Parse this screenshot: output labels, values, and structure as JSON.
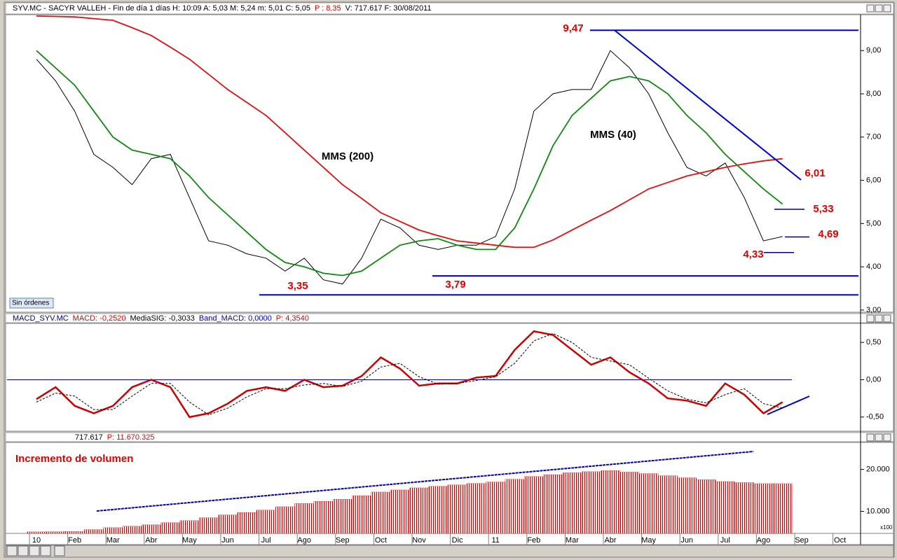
{
  "chart_data": [
    {
      "type": "line",
      "header": [
        {
          "text": "SYV.MC - SACYR VALLEH - Fin de día 1 días H: 10:09 A: 5,03 M: 5,24 m: 5,01 C: 5,05",
          "color": "#000000"
        },
        {
          "text": "P : 8,35",
          "color": "#e00000"
        },
        {
          "text": "V: 717.617 F: 30/08/2011",
          "color": "#000000"
        }
      ],
      "button": "Sin órdenes",
      "ylim": [
        2.95,
        9.83
      ],
      "yticks": [
        {
          "value": 3,
          "label": "3,00"
        },
        {
          "value": 4,
          "label": "4,00"
        },
        {
          "value": 5,
          "label": "5,00"
        },
        {
          "value": 6,
          "label": "6,00"
        },
        {
          "value": 7,
          "label": "7,00"
        },
        {
          "value": 8,
          "label": "8,00"
        },
        {
          "value": 9,
          "label": "9,00"
        }
      ],
      "series": [
        {
          "color": "#000000",
          "values": [
            8.8,
            8.3,
            7.6,
            6.6,
            6.3,
            5.9,
            6.5,
            6.6,
            5.6,
            4.6,
            4.5,
            4.3,
            4.2,
            3.9,
            4.2,
            3.7,
            3.6,
            4.2,
            5.1,
            4.9,
            4.5,
            4.4,
            4.5,
            4.5,
            4.7,
            5.8,
            7.6,
            8.0,
            8.1,
            8.1,
            9.0,
            8.6,
            8.0,
            7.1,
            6.3,
            6.1,
            6.4,
            5.6,
            4.6,
            4.7,
            null,
            null,
            null,
            null
          ]
        },
        {
          "name": "MMS (200)",
          "color": "#e01010",
          "values": [
            9.8,
            9.79,
            9.78,
            9.74,
            9.7,
            9.53,
            9.35,
            9.08,
            8.8,
            8.45,
            8.1,
            7.8,
            7.5,
            7.1,
            6.7,
            6.3,
            5.9,
            5.58,
            5.25,
            5.05,
            4.85,
            4.72,
            4.6,
            4.55,
            4.5,
            4.45,
            4.45,
            4.62,
            4.85,
            5.08,
            5.3,
            5.55,
            5.8,
            5.95,
            6.1,
            6.2,
            6.3,
            6.38,
            6.45,
            6.5,
            null,
            null,
            null,
            null
          ]
        },
        {
          "name": "MMS (40)",
          "color": "#118811",
          "values": [
            9.0,
            8.6,
            8.2,
            7.6,
            7.0,
            6.7,
            6.6,
            6.5,
            6.1,
            5.6,
            5.2,
            4.8,
            4.4,
            4.1,
            4.0,
            3.85,
            3.8,
            3.9,
            4.2,
            4.5,
            4.6,
            4.65,
            4.5,
            4.4,
            4.4,
            4.9,
            5.8,
            6.8,
            7.5,
            7.9,
            8.3,
            8.4,
            8.3,
            8.0,
            7.5,
            7.1,
            6.6,
            6.2,
            5.8,
            5.45,
            null,
            null,
            null,
            null
          ]
        }
      ],
      "annotations": [
        {
          "text": "9,47",
          "value": 9.47
        },
        {
          "text": "3,35",
          "value": 3.35
        },
        {
          "text": "3,79",
          "value": 3.79
        },
        {
          "text": "4,33",
          "value": 4.33
        },
        {
          "text": "5,33",
          "value": 5.33
        },
        {
          "text": "4,69",
          "value": 4.69
        },
        {
          "text": "6,01",
          "value": 6.01
        }
      ]
    },
    {
      "type": "line",
      "header": [
        {
          "text": "MACD_SYV.MC",
          "color": "#000080"
        },
        {
          "text": "MACD: -0,2520",
          "color": "#e00000"
        },
        {
          "text": "MediaSIG: -0,3033",
          "color": "#000000"
        },
        {
          "text": "Band_MACD: 0,0000",
          "color": "#0000cc"
        },
        {
          "text": "P: 4,3540",
          "color": "#e00000"
        }
      ],
      "ylim": [
        -0.69,
        0.755
      ],
      "yticks": [
        {
          "value": 0.5,
          "label": "0,50"
        },
        {
          "value": 0,
          "label": "0,00"
        },
        {
          "value": -0.5,
          "label": "-0,50"
        }
      ],
      "series": [
        {
          "color": "#cc0000",
          "values": [
            -0.26,
            -0.1,
            -0.35,
            -0.45,
            -0.35,
            -0.1,
            0.0,
            -0.1,
            -0.5,
            -0.45,
            -0.32,
            -0.15,
            -0.1,
            -0.15,
            0.0,
            -0.1,
            -0.08,
            0.05,
            0.3,
            0.15,
            -0.08,
            -0.05,
            -0.05,
            0.03,
            0.05,
            0.4,
            0.65,
            0.6,
            0.4,
            0.2,
            0.3,
            0.1,
            -0.05,
            -0.25,
            -0.28,
            -0.35,
            -0.05,
            -0.2,
            -0.45,
            -0.3,
            null,
            null,
            null,
            null
          ]
        },
        {
          "color": "#000000",
          "dashed": true,
          "values": [
            -0.3,
            -0.18,
            -0.22,
            -0.4,
            -0.4,
            -0.22,
            -0.05,
            -0.05,
            -0.3,
            -0.47,
            -0.38,
            -0.23,
            -0.12,
            -0.12,
            -0.07,
            -0.05,
            -0.09,
            -0.02,
            0.17,
            0.22,
            0.04,
            -0.06,
            -0.05,
            -0.01,
            0.04,
            0.22,
            0.52,
            0.62,
            0.5,
            0.3,
            0.25,
            0.2,
            0.02,
            -0.15,
            -0.26,
            -0.31,
            -0.2,
            -0.12,
            -0.32,
            -0.38,
            null,
            null,
            null,
            null
          ]
        }
      ]
    },
    {
      "type": "bar",
      "header": [
        {
          "text": "717.617",
          "color": "#000000"
        },
        {
          "text": "P: 11.670.325",
          "color": "#e00000"
        }
      ],
      "note": "Incremento de volumen",
      "unit": "x100",
      "color": "#cc0000",
      "ylim": [
        4746,
        26440
      ],
      "yticks": [
        {
          "value": 10000,
          "label": "10.000"
        },
        {
          "value": 20000,
          "label": "20.000"
        }
      ],
      "categories": [
        "10",
        null,
        "Feb",
        null,
        "Mar",
        null,
        "Abr",
        null,
        "May",
        null,
        "Jun",
        null,
        "Jul",
        null,
        "Ago",
        null,
        "Sep",
        null,
        "Oct",
        null,
        "Nov",
        null,
        "Dic",
        null,
        "11",
        null,
        "Feb",
        null,
        "Mar",
        null,
        "Abr",
        null,
        "May",
        null,
        "Jun",
        null,
        "Jul",
        null,
        "Ago",
        null,
        "Sep",
        null,
        "Oct",
        null
      ],
      "values": [
        5100,
        5150,
        5200,
        5650,
        6100,
        6450,
        6800,
        7300,
        7800,
        8480,
        9150,
        9730,
        10300,
        11100,
        11900,
        12400,
        12900,
        13750,
        14600,
        15100,
        15600,
        15950,
        16300,
        16650,
        17000,
        17650,
        18300,
        18750,
        19200,
        19450,
        19700,
        19350,
        19000,
        18500,
        18000,
        17550,
        17100,
        16850,
        16600,
        16600,
        null,
        null,
        null,
        null
      ]
    }
  ]
}
